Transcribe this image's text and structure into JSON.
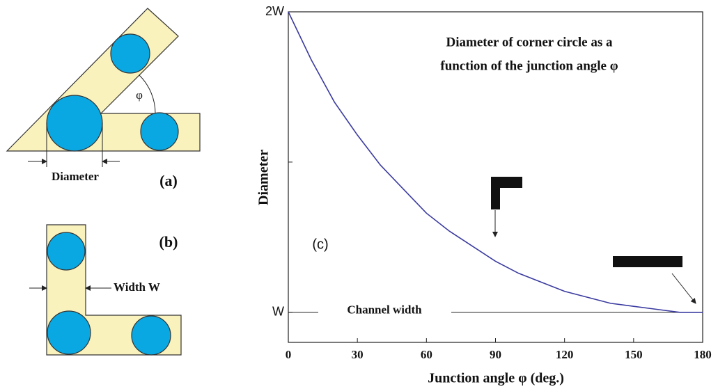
{
  "chart_data": {
    "type": "line",
    "title": [
      "Diameter of corner circle as a",
      "function of the junction angle φ"
    ],
    "panel_label": "(c)",
    "xlabel": "Junction angle φ  (deg.)",
    "ylabel": "Diameter",
    "x": [
      0,
      10,
      20,
      30,
      40,
      50,
      60,
      70,
      80,
      90,
      100,
      110,
      120,
      130,
      140,
      150,
      160,
      170,
      180
    ],
    "series": [
      {
        "name": null,
        "color": "#3a3aa0",
        "values": [
          2,
          1.84,
          1.7,
          1.59,
          1.49,
          1.41,
          1.33,
          1.27,
          1.22,
          1.17,
          1.13,
          1.1,
          1.07,
          1.05,
          1.03,
          1.02,
          1.01,
          1.0,
          1
        ]
      }
    ],
    "xlim": [
      0,
      180
    ],
    "xticks": [
      0,
      30,
      60,
      90,
      120,
      150,
      180
    ],
    "ylim": [
      0.9,
      2
    ],
    "yticks": [
      {
        "value": 1,
        "label": "W"
      },
      {
        "value": 1.5,
        "label": null
      },
      {
        "value": 2,
        "label": "2W"
      }
    ],
    "reference_line": {
      "value": 1,
      "label": "Channel width"
    }
  },
  "diagrams": {
    "a": {
      "label": "(a)",
      "diameter_label": "Diameter",
      "angle_label": "φ"
    },
    "b": {
      "label": "(b)",
      "width_label": "Width W"
    }
  }
}
